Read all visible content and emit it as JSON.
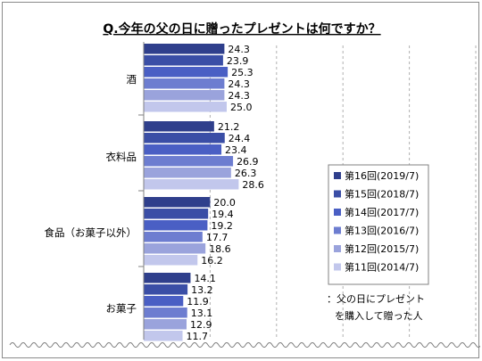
{
  "chart_data": {
    "type": "bar",
    "orientation": "horizontal",
    "title": "Q.今年の父の日に贈ったプレゼントは何ですか？",
    "categories": [
      "酒",
      "衣料品",
      "食品（お菓子以外）",
      "お菓子"
    ],
    "series": [
      {
        "name": "第16回(2019/7)",
        "color": "#2f3f8c",
        "values": [
          24.3,
          21.2,
          20.0,
          14.1
        ]
      },
      {
        "name": "第15回(2018/7)",
        "color": "#3a4ea6",
        "values": [
          23.9,
          24.4,
          19.4,
          13.2
        ]
      },
      {
        "name": "第14回(2017/7)",
        "color": "#4a5fc4",
        "values": [
          25.3,
          23.4,
          19.2,
          11.9
        ]
      },
      {
        "name": "第13回(2016/7)",
        "color": "#6d7dd0",
        "values": [
          24.3,
          26.9,
          17.7,
          13.1
        ]
      },
      {
        "name": "第12回(2015/7)",
        "color": "#9aa3dc",
        "values": [
          24.3,
          26.3,
          18.6,
          12.9
        ]
      },
      {
        "name": "第11回(2014/7)",
        "color": "#c2c7ec",
        "values": [
          25.0,
          28.6,
          16.2,
          11.7
        ]
      }
    ],
    "xlim": [
      0,
      100
    ],
    "grid": "vertical-dashed",
    "legend_position": "right",
    "data_labels": true
  },
  "note": {
    "line1": "：父の日にプレゼント",
    "line2": "を購入して贈った人"
  }
}
